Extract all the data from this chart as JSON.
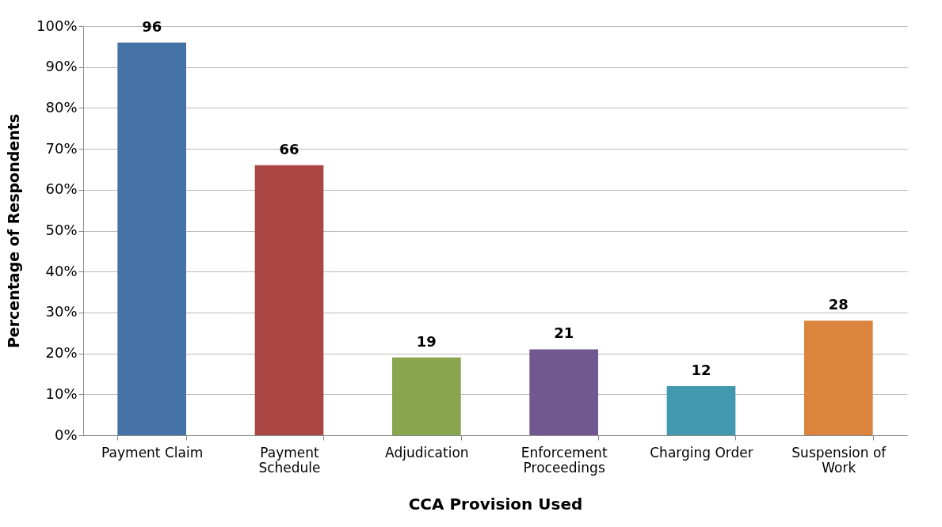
{
  "chart_data": {
    "type": "bar",
    "xlabel": "CCA Provision Used",
    "ylabel": "Percentage of Respondents",
    "categories": [
      "Payment Claim",
      "Payment Schedule",
      "Adjudication",
      "Enforcement Proceedings",
      "Charging Order",
      "Suspension of Work"
    ],
    "values": [
      96,
      66,
      19,
      21,
      12,
      28
    ],
    "colors": [
      "#4572a7",
      "#aa4643",
      "#89a54e",
      "#71588f",
      "#4198af",
      "#db843d"
    ],
    "ylim": [
      0,
      100
    ],
    "yticks": [
      {
        "value": 0,
        "label": "0%"
      },
      {
        "value": 10,
        "label": "10%"
      },
      {
        "value": 20,
        "label": "20%"
      },
      {
        "value": 30,
        "label": "30%"
      },
      {
        "value": 40,
        "label": "40%"
      },
      {
        "value": 50,
        "label": "50%"
      },
      {
        "value": 60,
        "label": "60%"
      },
      {
        "value": 70,
        "label": "70%"
      },
      {
        "value": 80,
        "label": "80%"
      },
      {
        "value": 90,
        "label": "90%"
      },
      {
        "value": 100,
        "label": "100%"
      }
    ],
    "grid": "y",
    "data_labels": true
  }
}
